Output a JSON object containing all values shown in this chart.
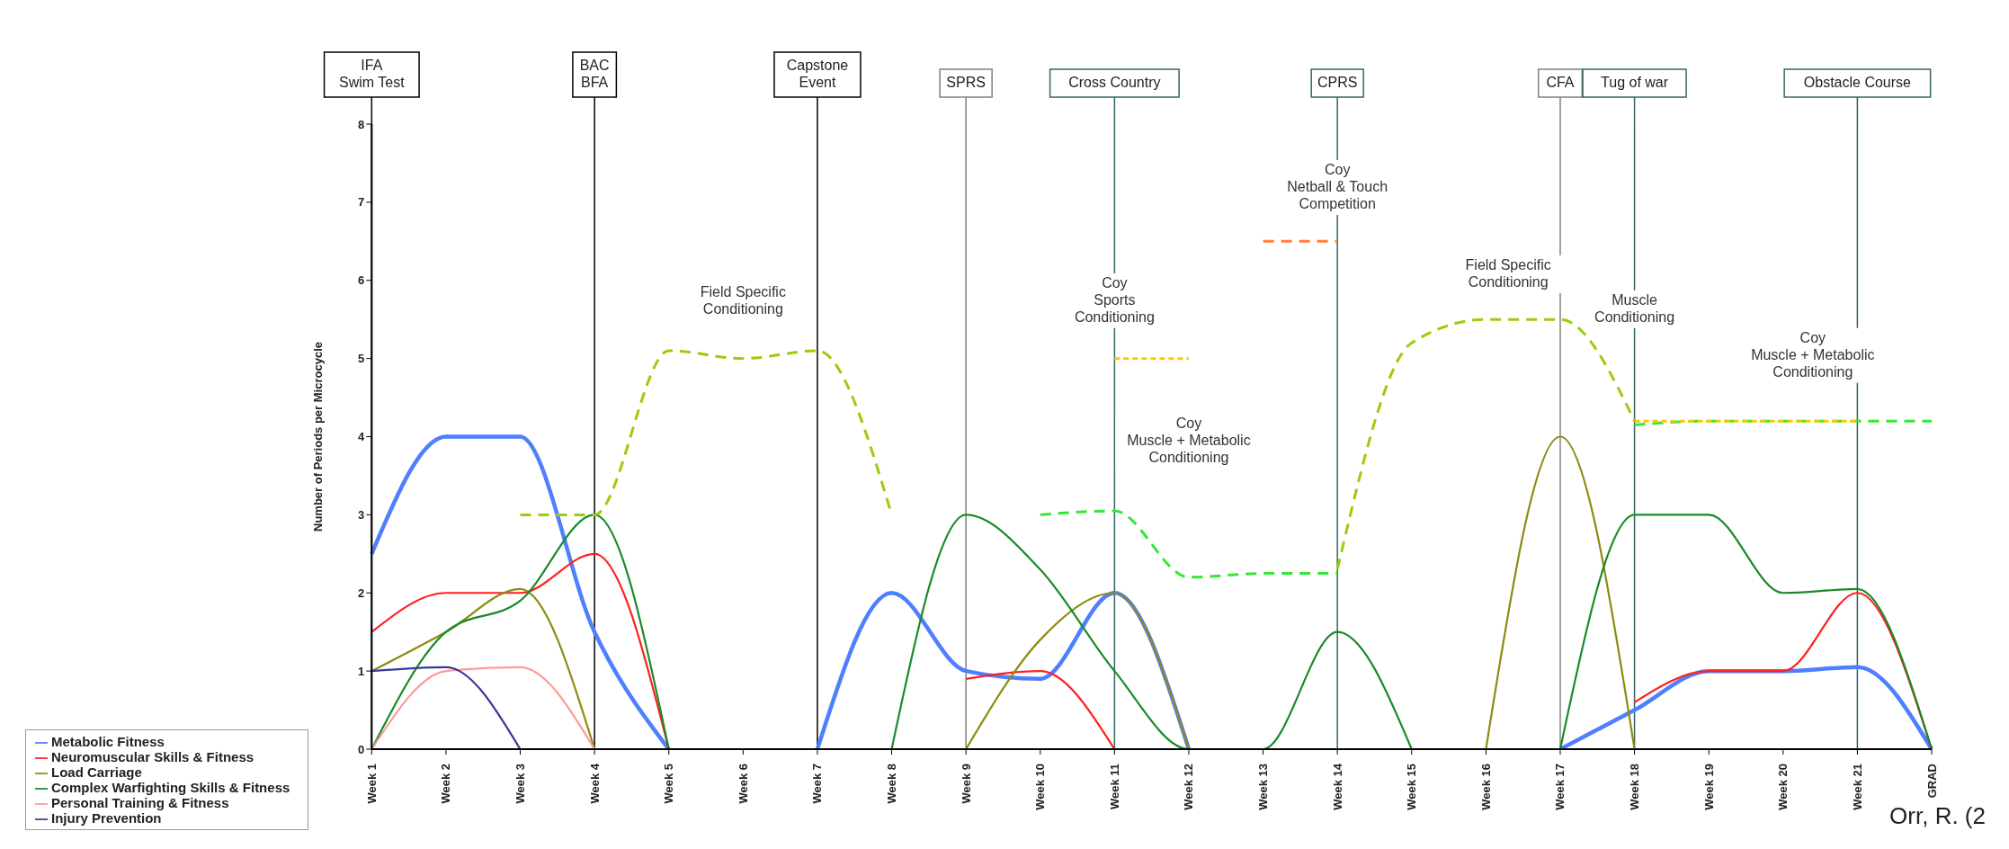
{
  "chart_data": {
    "type": "line",
    "ylabel": "Number of Periods per Microcycle",
    "categories": [
      "Week 1",
      "Week 2",
      "Week 3",
      "Week 4",
      "Week 5",
      "Week 6",
      "Week 7",
      "Week 8",
      "Week 9",
      "Week 10",
      "Week 11",
      "Week 12",
      "Week 13",
      "Week 14",
      "Week 15",
      "Week 16",
      "Week 17",
      "Week 18",
      "Week 19",
      "Week 20",
      "Week 21",
      "GRAD"
    ],
    "ylim": [
      0,
      8
    ],
    "yticks": [
      0,
      1,
      2,
      3,
      4,
      5,
      6,
      7,
      8
    ],
    "legend": "bottom left",
    "marker": "none",
    "series": [
      {
        "name": "Metabolic Fitness",
        "color": "#4f7fff",
        "line_style": "solid",
        "values": [
          2.5,
          4.0,
          4.0,
          1.5,
          0,
          null,
          0,
          2.0,
          1.0,
          0.9,
          2.0,
          0,
          null,
          null,
          null,
          null,
          0,
          0.5,
          1.0,
          1.0,
          1.05,
          0
        ]
      },
      {
        "name": "Neuromuscular Skills & Fitness",
        "color": "#ff2020",
        "line_style": "solid",
        "values": [
          1.5,
          2.0,
          2.0,
          2.5,
          0,
          null,
          null,
          null,
          0.9,
          1.0,
          0,
          null,
          null,
          null,
          null,
          null,
          null,
          0.6,
          1.0,
          1.0,
          2.0,
          0
        ]
      },
      {
        "name": "Load Carriage",
        "color": "#8c8c10",
        "line_style": "solid",
        "values": [
          1.0,
          1.5,
          2.05,
          0,
          null,
          null,
          null,
          null,
          0,
          1.4,
          2.0,
          0,
          null,
          null,
          null,
          0,
          4.0,
          0,
          null,
          null,
          null,
          null
        ]
      },
      {
        "name": "Complex Warfighting Skills & Fitness",
        "color": "#1a8a2a",
        "line_style": "solid",
        "values": [
          0,
          1.5,
          1.9,
          3.0,
          0,
          null,
          null,
          0,
          3.0,
          2.3,
          1.0,
          0,
          0,
          1.5,
          0,
          null,
          0,
          3.0,
          3.0,
          2.0,
          2.05,
          0
        ]
      },
      {
        "name": "Personal Training & Fitness",
        "color": "#ff9a9a",
        "line_style": "solid",
        "values": [
          0,
          1.0,
          1.05,
          0,
          null,
          null,
          null,
          null,
          null,
          null,
          null,
          null,
          null,
          null,
          null,
          null,
          null,
          null,
          null,
          null,
          null,
          null
        ]
      },
      {
        "name": "Injury Prevention",
        "color": "#3a3a9a",
        "line_style": "solid",
        "values": [
          1.0,
          1.05,
          0,
          null,
          null,
          null,
          null,
          null,
          null,
          null,
          null,
          null,
          null,
          null,
          null,
          null,
          null,
          null,
          null,
          null,
          null,
          null
        ]
      },
      {
        "color": "#9acd0a",
        "line_style": "dashed",
        "values": [
          null,
          null,
          3.0,
          3.0,
          5.1,
          5.0,
          5.1,
          3.0,
          null,
          null,
          null,
          null,
          null,
          2.3,
          5.2,
          5.5,
          5.5,
          4.2,
          null,
          null,
          null,
          null
        ]
      },
      {
        "color": "#33e833",
        "line_style": "dashed",
        "values": [
          null,
          null,
          null,
          null,
          null,
          null,
          null,
          null,
          null,
          3.0,
          3.05,
          2.2,
          2.25,
          2.25,
          null,
          null,
          null,
          4.15,
          4.2,
          4.2,
          4.2,
          4.2
        ]
      },
      {
        "color": "#ffc800",
        "line_style": "dashed",
        "values": [
          null,
          null,
          null,
          null,
          null,
          null,
          null,
          null,
          null,
          null,
          5.0,
          5.0,
          null,
          null,
          null,
          null,
          null,
          4.2,
          4.2,
          4.2,
          4.2,
          null
        ]
      },
      {
        "color": "#ff7f40",
        "line_style": "dashed",
        "values": [
          null,
          null,
          null,
          null,
          null,
          null,
          null,
          null,
          null,
          null,
          null,
          null,
          6.5,
          6.5,
          null,
          null,
          null,
          null,
          null,
          null,
          null,
          null
        ]
      }
    ],
    "ref_lines": [
      {
        "axis": "x",
        "value": "Week 1",
        "label": "IFA\nSwim Test",
        "color": "#000000"
      },
      {
        "axis": "x",
        "value": "Week 4",
        "label": "BAC\nBFA",
        "color": "#000000"
      },
      {
        "axis": "x",
        "value": "Week 7",
        "label": "Capstone\nEvent",
        "color": "#000000"
      },
      {
        "axis": "x",
        "value": "Week 9",
        "label": "SPRS",
        "color": "#808080"
      },
      {
        "axis": "x",
        "value": "Week 11",
        "label": "Cross Country",
        "color": "#336666"
      },
      {
        "axis": "x",
        "value": "Week 14",
        "label": "CPRS",
        "color": "#336666"
      },
      {
        "axis": "x",
        "value": "Week 17",
        "label": "CFA",
        "color": "#808080"
      },
      {
        "axis": "x",
        "value": "Week 18",
        "label": "Tug of war",
        "color": "#336666"
      },
      {
        "axis": "x",
        "value": "Week 21",
        "label": "Obstacle Course",
        "color": "#336666"
      }
    ],
    "annotations": [
      "Field Specific\nConditioning",
      {
        "text": "Coy\nSports\nConditioning",
        "x": "Week 11",
        "y": 5.4
      },
      "Coy\nMuscle + Metabolic\nConditioning",
      {
        "text": "Coy\nNetball & Touch\nCompetition",
        "x": "Week 14",
        "y": 6.85
      },
      "Field Specific\nConditioning",
      {
        "text": "Muscle\nConditioning",
        "x": "Week 18",
        "y": 5.4
      },
      "Coy\nMuscle + Metabolic\nConditioning",
      "Orr, R. (2"
    ]
  }
}
